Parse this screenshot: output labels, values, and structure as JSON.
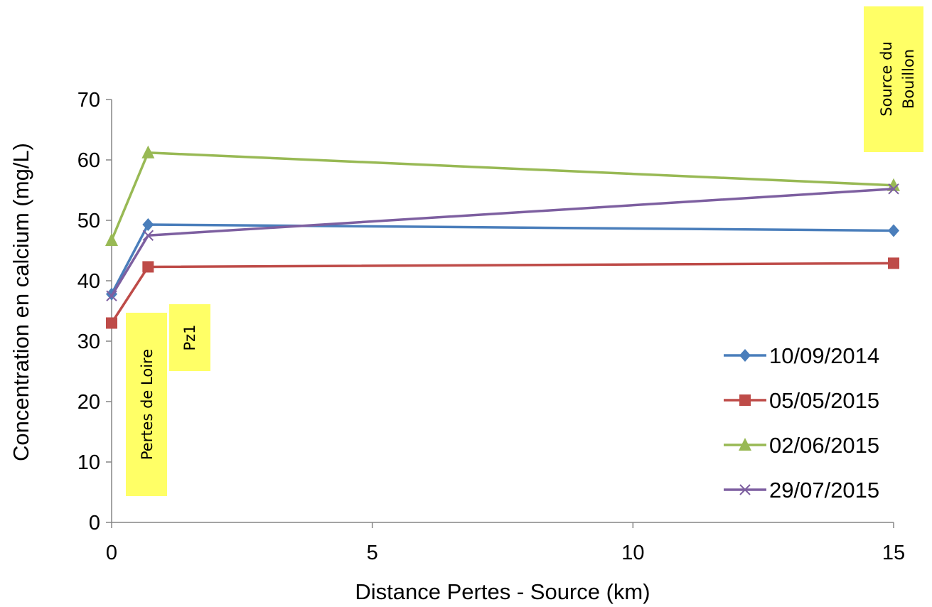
{
  "chart_data": {
    "type": "line",
    "xlabel": "Distance Pertes - Source (km)",
    "ylabel": "Concentration en calcium (mg/L)",
    "xlim": [
      0,
      15
    ],
    "ylim": [
      0,
      70
    ],
    "xticks": [
      0,
      5,
      10,
      15
    ],
    "yticks": [
      0,
      10,
      20,
      30,
      40,
      50,
      60,
      70
    ],
    "grid": false,
    "legend_position": "right",
    "series": [
      {
        "name": "10/09/2014",
        "color": "#4a7ebb",
        "marker": "diamond",
        "x": [
          0,
          0.7,
          15
        ],
        "y": [
          37.8,
          49.3,
          48.3
        ]
      },
      {
        "name": "05/05/2015",
        "color": "#be4b48",
        "marker": "square",
        "x": [
          0,
          0.7,
          15
        ],
        "y": [
          33.0,
          42.3,
          42.9
        ]
      },
      {
        "name": "02/06/2015",
        "color": "#98b954",
        "marker": "triangle",
        "x": [
          0,
          0.7,
          15
        ],
        "y": [
          46.7,
          61.2,
          55.8
        ]
      },
      {
        "name": "29/07/2015",
        "color": "#7d5fa0",
        "marker": "x",
        "x": [
          0,
          0.7,
          15
        ],
        "y": [
          37.5,
          47.5,
          55.2
        ]
      }
    ],
    "annotations": [
      {
        "id": "pertes",
        "text": "Pertes de Loire",
        "highlight": "#ffff66"
      },
      {
        "id": "pz1",
        "text": "Pz1",
        "highlight": "#ffff66"
      },
      {
        "id": "source",
        "lines": [
          "Source du",
          "Bouillon"
        ],
        "highlight": "#ffff66"
      }
    ]
  }
}
